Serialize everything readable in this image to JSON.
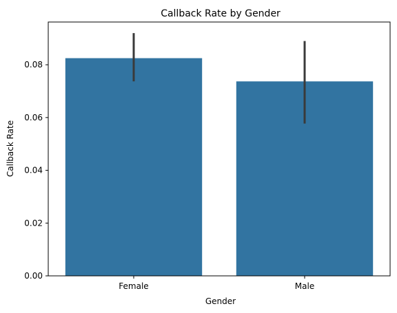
{
  "chart_data": {
    "type": "bar",
    "title": "Callback Rate by Gender",
    "xlabel": "Gender",
    "ylabel": "Callback Rate",
    "categories": [
      "Female",
      "Male"
    ],
    "values": [
      0.0825,
      0.0737
    ],
    "error_bars": [
      {
        "low": 0.0737,
        "high": 0.092
      },
      {
        "low": 0.0577,
        "high": 0.089
      }
    ],
    "ylim": [
      0,
      0.0962
    ],
    "yticks": [
      0.0,
      0.02,
      0.04,
      0.06,
      0.08
    ],
    "ytick_labels": [
      "0.00",
      "0.02",
      "0.04",
      "0.06",
      "0.08"
    ],
    "grid": false,
    "colors": {
      "bar": "#3274a1",
      "error_bar": "#3a3a3a",
      "axis": "#000000"
    }
  }
}
